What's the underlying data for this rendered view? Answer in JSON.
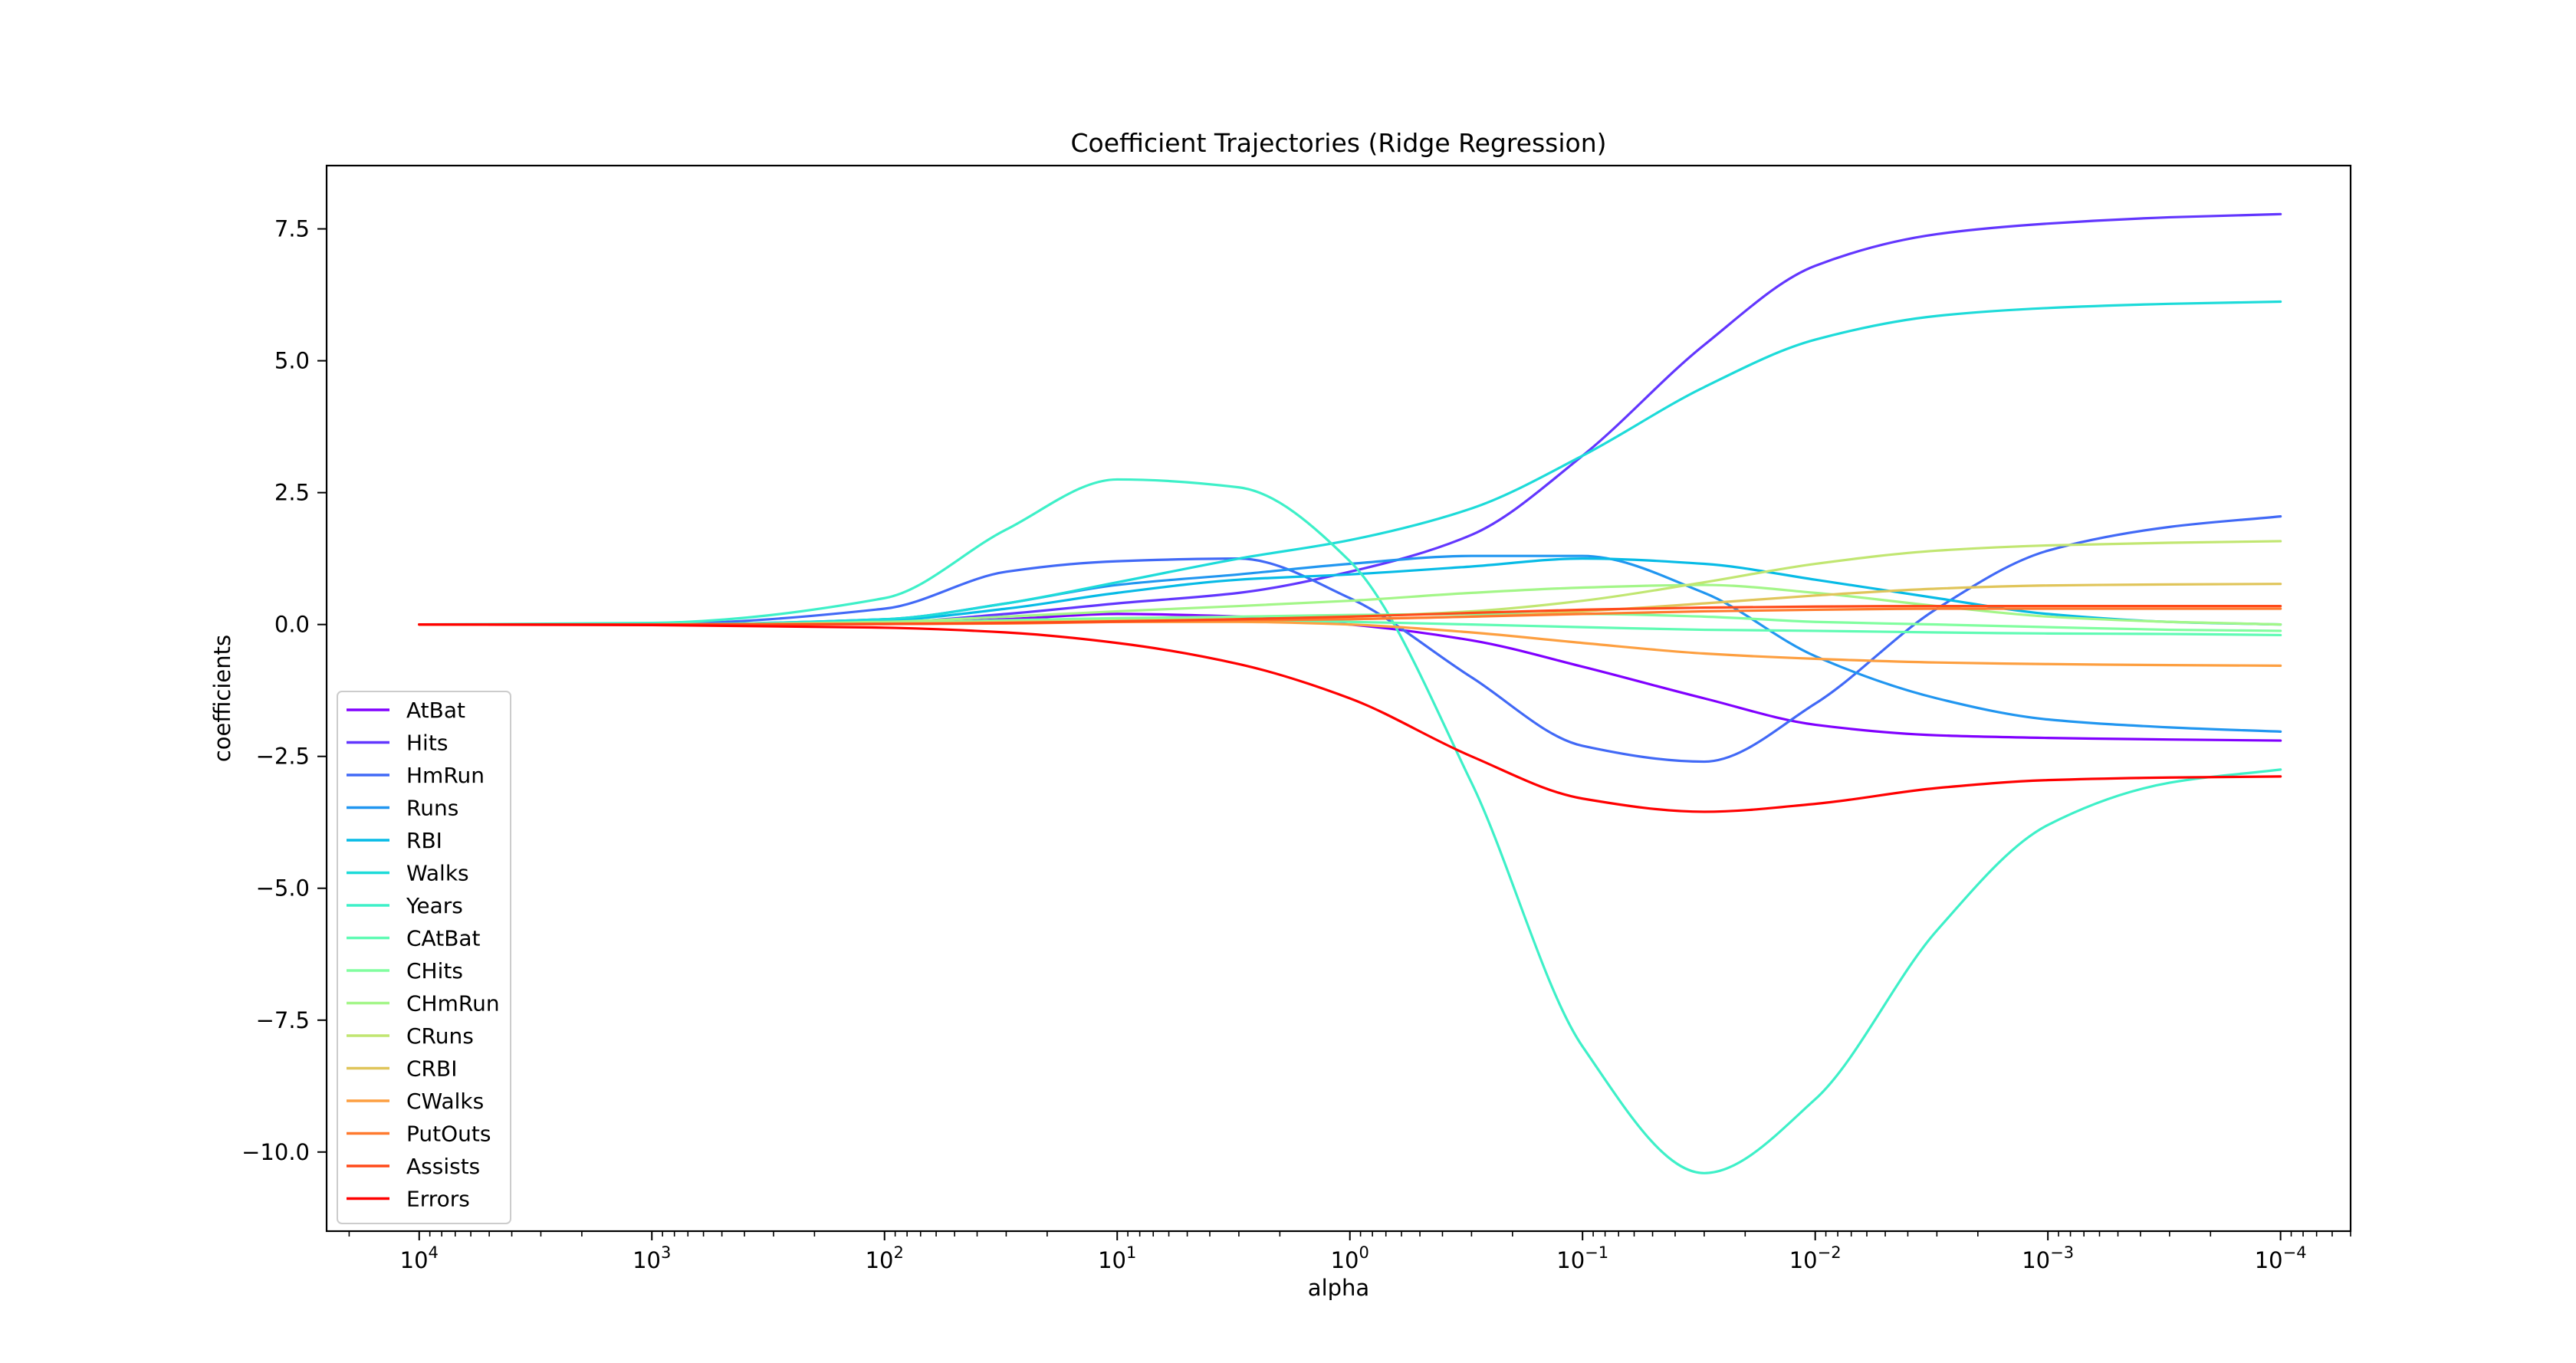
{
  "chart_data": {
    "type": "line",
    "title": "Coefficient Trajectories (Ridge Regression)",
    "xlabel": "alpha",
    "ylabel": "coefficients",
    "x_scale": "log",
    "x_reversed": true,
    "xlim": [
      25000,
      5e-05
    ],
    "ylim": [
      -11.5,
      8.7
    ],
    "x_ticks": [
      {
        "value": 10000,
        "base": "10",
        "exp": "4"
      },
      {
        "value": 1000,
        "base": "10",
        "exp": "3"
      },
      {
        "value": 100,
        "base": "10",
        "exp": "2"
      },
      {
        "value": 10,
        "base": "10",
        "exp": "1"
      },
      {
        "value": 1,
        "base": "10",
        "exp": "0"
      },
      {
        "value": 0.1,
        "base": "10",
        "exp": "−1"
      },
      {
        "value": 0.01,
        "base": "10",
        "exp": "−2"
      },
      {
        "value": 0.001,
        "base": "10",
        "exp": "−3"
      },
      {
        "value": 0.0001,
        "base": "10",
        "exp": "−4"
      }
    ],
    "y_ticks": [
      {
        "value": 7.5,
        "label": "7.5"
      },
      {
        "value": 5.0,
        "label": "5.0"
      },
      {
        "value": 2.5,
        "label": "2.5"
      },
      {
        "value": 0.0,
        "label": "0.0"
      },
      {
        "value": -2.5,
        "label": "−2.5"
      },
      {
        "value": -5.0,
        "label": "−5.0"
      },
      {
        "value": -7.5,
        "label": "−7.5"
      },
      {
        "value": -10.0,
        "label": "−10.0"
      }
    ],
    "grid": false,
    "legend_position": "lower-left",
    "x": [
      10000,
      1000,
      100,
      30,
      10,
      3,
      1,
      0.3,
      0.1,
      0.03,
      0.01,
      0.003,
      0.001,
      0.0003,
      0.0001
    ],
    "series": [
      {
        "name": "AtBat",
        "color": "#8000ff",
        "values": [
          0,
          0,
          0.02,
          0.1,
          0.2,
          0.15,
          0,
          -0.3,
          -0.8,
          -1.4,
          -1.9,
          -2.1,
          -2.15,
          -2.18,
          -2.2
        ]
      },
      {
        "name": "Hits",
        "color": "#6236fe",
        "values": [
          0,
          0,
          0.04,
          0.2,
          0.4,
          0.6,
          1.0,
          1.7,
          3.2,
          5.3,
          6.8,
          7.4,
          7.6,
          7.72,
          7.78
        ]
      },
      {
        "name": "HmRun",
        "color": "#4169f6",
        "values": [
          0,
          0.01,
          0.3,
          1.0,
          1.2,
          1.25,
          0.5,
          -1.0,
          -2.3,
          -2.6,
          -1.5,
          0.3,
          1.4,
          1.85,
          2.05
        ]
      },
      {
        "name": "Runs",
        "color": "#2196f0",
        "values": [
          0,
          0,
          0.1,
          0.4,
          0.75,
          0.95,
          1.15,
          1.3,
          1.3,
          0.6,
          -0.6,
          -1.4,
          -1.8,
          -1.95,
          -2.03
        ]
      },
      {
        "name": "RBI",
        "color": "#07bbe6",
        "values": [
          0,
          0,
          0.08,
          0.3,
          0.6,
          0.85,
          0.95,
          1.1,
          1.25,
          1.15,
          0.85,
          0.5,
          0.2,
          0.05,
          0.0
        ]
      },
      {
        "name": "Walks",
        "color": "#1ddbd9",
        "values": [
          0,
          0,
          0.1,
          0.4,
          0.8,
          1.25,
          1.6,
          2.2,
          3.2,
          4.5,
          5.4,
          5.85,
          6.0,
          6.08,
          6.12
        ]
      },
      {
        "name": "Years",
        "color": "#3ef0c8",
        "values": [
          0,
          0.03,
          0.5,
          1.8,
          2.75,
          2.6,
          1.2,
          -3.0,
          -8.0,
          -10.4,
          -9.0,
          -5.8,
          -3.8,
          -3.0,
          -2.75
        ]
      },
      {
        "name": "CAtBat",
        "color": "#60fbb4",
        "values": [
          0,
          0,
          0.02,
          0.05,
          0.08,
          0.08,
          0.05,
          0,
          -0.05,
          -0.1,
          -0.12,
          -0.15,
          -0.17,
          -0.18,
          -0.2
        ]
      },
      {
        "name": "CHits",
        "color": "#81fe9f",
        "values": [
          0,
          0,
          0.03,
          0.08,
          0.12,
          0.15,
          0.18,
          0.2,
          0.2,
          0.15,
          0.05,
          0,
          -0.05,
          -0.1,
          -0.12
        ]
      },
      {
        "name": "CHmRun",
        "color": "#a3f688",
        "values": [
          0,
          0,
          0.05,
          0.15,
          0.25,
          0.35,
          0.45,
          0.6,
          0.7,
          0.75,
          0.6,
          0.35,
          0.15,
          0.05,
          0.0
        ]
      },
      {
        "name": "CRuns",
        "color": "#c1e671",
        "values": [
          0,
          0,
          0.02,
          0.05,
          0.08,
          0.1,
          0.15,
          0.25,
          0.45,
          0.8,
          1.15,
          1.4,
          1.5,
          1.55,
          1.58
        ]
      },
      {
        "name": "CRBI",
        "color": "#e0c55a",
        "values": [
          0,
          0,
          0.02,
          0.04,
          0.06,
          0.08,
          0.1,
          0.15,
          0.25,
          0.4,
          0.55,
          0.68,
          0.74,
          0.76,
          0.77
        ]
      },
      {
        "name": "CWalks",
        "color": "#fd9f40",
        "values": [
          0,
          0,
          0.01,
          0.03,
          0.05,
          0.05,
          0,
          -0.15,
          -0.35,
          -0.55,
          -0.65,
          -0.72,
          -0.75,
          -0.77,
          -0.78
        ]
      },
      {
        "name": "PutOuts",
        "color": "#ff7a2e",
        "values": [
          0,
          0,
          0.01,
          0.02,
          0.05,
          0.08,
          0.1,
          0.15,
          0.2,
          0.25,
          0.28,
          0.3,
          0.3,
          0.3,
          0.3
        ]
      },
      {
        "name": "Assists",
        "color": "#ff4a1a",
        "values": [
          0,
          0,
          0.01,
          0.03,
          0.06,
          0.1,
          0.15,
          0.22,
          0.28,
          0.32,
          0.34,
          0.35,
          0.35,
          0.35,
          0.35
        ]
      },
      {
        "name": "Errors",
        "color": "#ff0000",
        "values": [
          0,
          -0.01,
          -0.06,
          -0.15,
          -0.35,
          -0.75,
          -1.4,
          -2.5,
          -3.3,
          -3.55,
          -3.4,
          -3.1,
          -2.95,
          -2.9,
          -2.88
        ]
      }
    ]
  }
}
